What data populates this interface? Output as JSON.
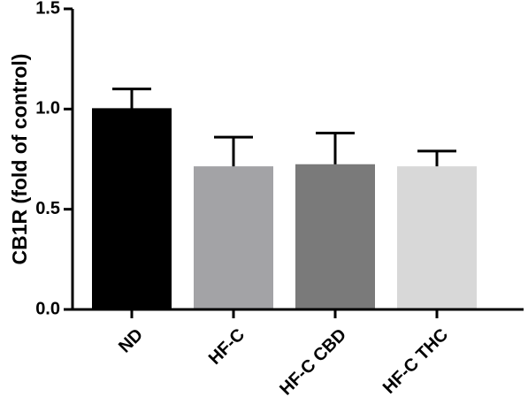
{
  "chart_data": {
    "type": "bar",
    "title": "",
    "xlabel": "",
    "ylabel": "CB1R (fold of control)",
    "ylim": [
      0,
      1.5
    ],
    "yticks": [
      "0.0",
      "0.5",
      "1.0",
      "1.5"
    ],
    "categories": [
      "ND",
      "HF-C",
      "HF-C CBD",
      "HF-C THC"
    ],
    "values": [
      1.0,
      0.71,
      0.72,
      0.71
    ],
    "errors": [
      0.1,
      0.15,
      0.16,
      0.08
    ],
    "colors": [
      "#000000",
      "#a3a3a6",
      "#7a7a7a",
      "#d8d8d8"
    ],
    "grid": false,
    "legend": "none"
  }
}
